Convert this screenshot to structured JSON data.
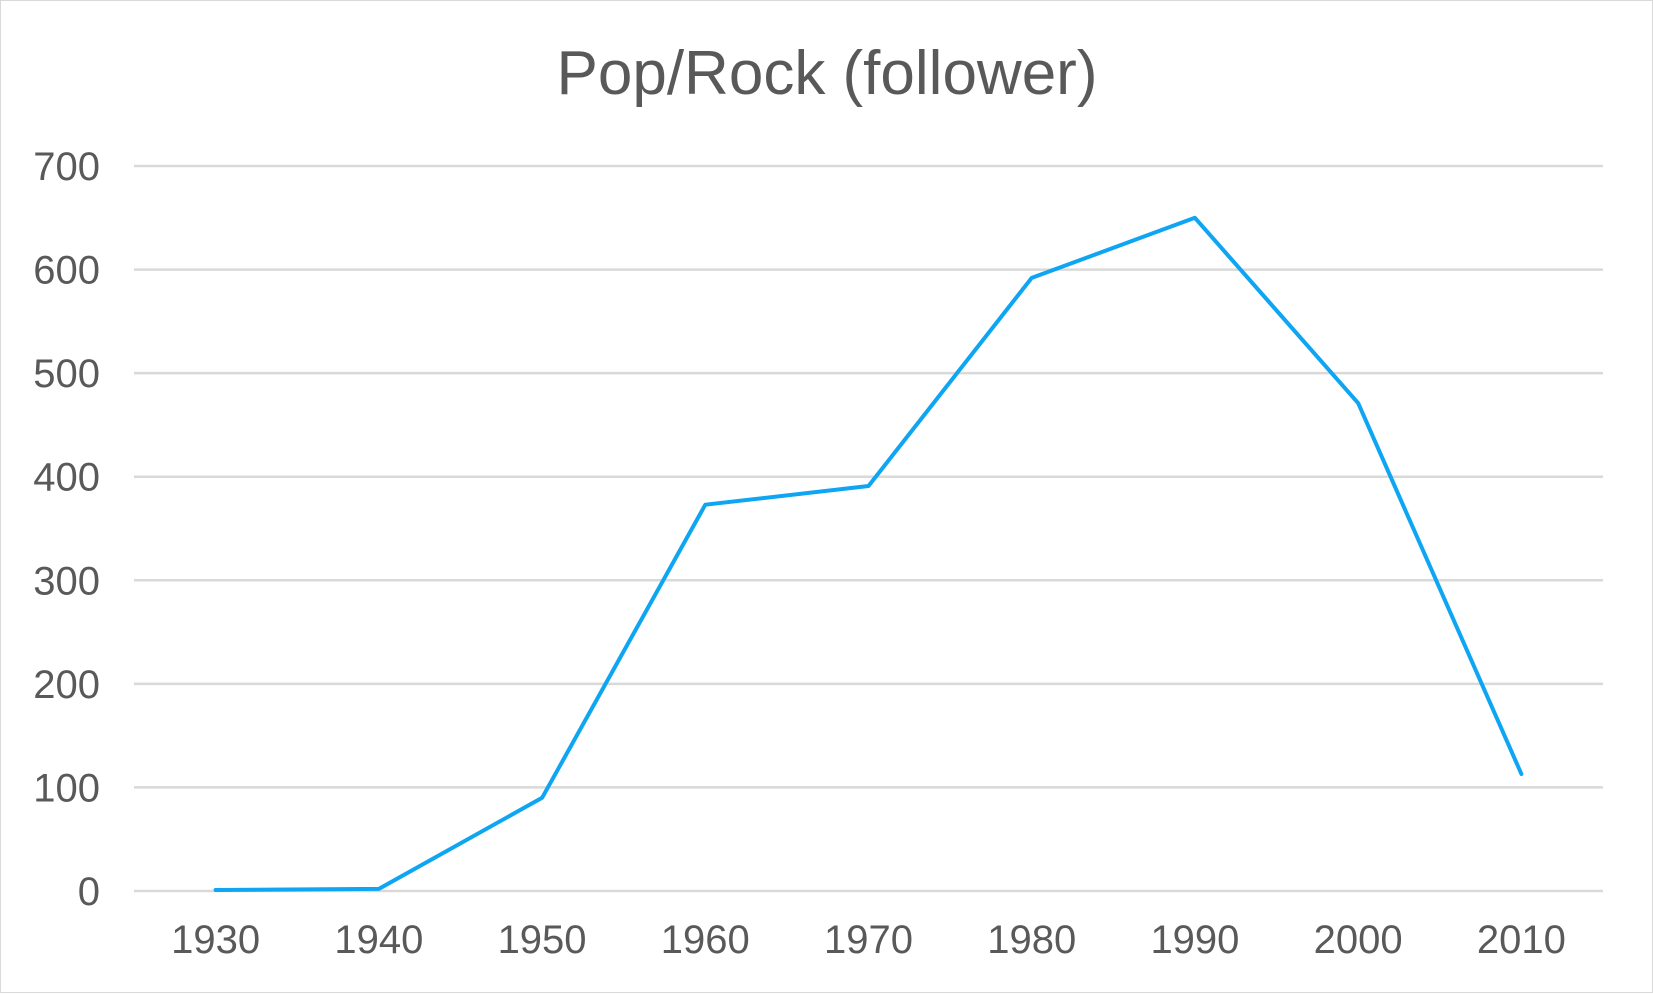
{
  "chart_data": {
    "type": "line",
    "title": "Pop/Rock (follower)",
    "xlabel": "",
    "ylabel": "",
    "categories": [
      "1930",
      "1940",
      "1950",
      "1960",
      "1970",
      "1980",
      "1990",
      "2000",
      "2010"
    ],
    "series": [
      {
        "values": [
          1,
          2,
          90,
          373,
          391,
          592,
          650,
          471,
          113
        ],
        "color": "#0ea5f2"
      }
    ],
    "ylim": [
      0,
      700
    ],
    "yticks": [
      0,
      100,
      200,
      300,
      400,
      500,
      600,
      700
    ],
    "grid": "horizontal",
    "legend": "none"
  }
}
